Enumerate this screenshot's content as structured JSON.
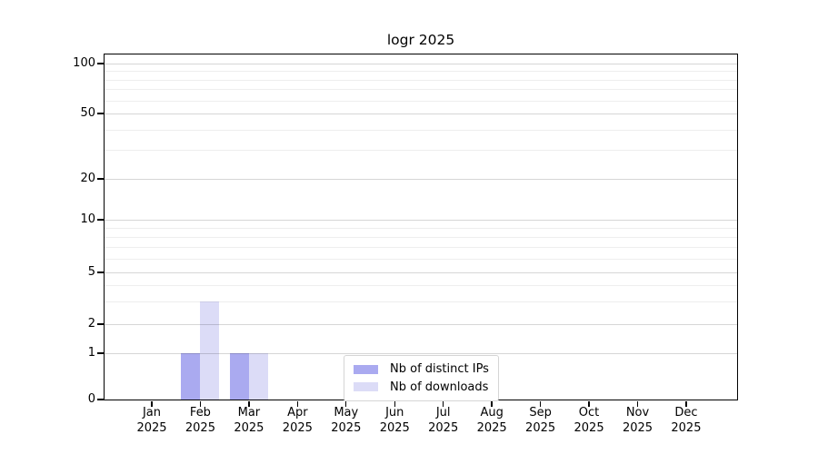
{
  "chart_data": {
    "type": "bar",
    "title": "logr 2025",
    "categories": [
      "Jan 2025",
      "Feb 2025",
      "Mar 2025",
      "Apr 2025",
      "May 2025",
      "Jun 2025",
      "Jul 2025",
      "Aug 2025",
      "Sep 2025",
      "Oct 2025",
      "Nov 2025",
      "Dec 2025"
    ],
    "series": [
      {
        "name": "Nb of distinct IPs",
        "color": "#aaaaf0",
        "values": [
          0,
          1,
          1,
          0,
          0,
          0,
          0,
          0,
          0,
          0,
          0,
          0
        ]
      },
      {
        "name": "Nb of downloads",
        "color": "#dcdcf7",
        "values": [
          0,
          3,
          1,
          0,
          0,
          0,
          0,
          0,
          0,
          0,
          0,
          0
        ]
      }
    ],
    "y_axis": {
      "scale": "log-like with linear 0-1 segment",
      "ticks": [
        0,
        1,
        2,
        5,
        10,
        20,
        50,
        100
      ],
      "minor_ticks": [
        3,
        4,
        6,
        7,
        8,
        9,
        30,
        40,
        60,
        70,
        80,
        90
      ]
    },
    "x_axis": {
      "tick_labels_two_lines": true
    },
    "grid": {
      "horizontal": true,
      "vertical": false
    },
    "legend": {
      "position": "inside lower-center",
      "entries": [
        "Nb of distinct IPs",
        "Nb of downloads"
      ]
    }
  }
}
